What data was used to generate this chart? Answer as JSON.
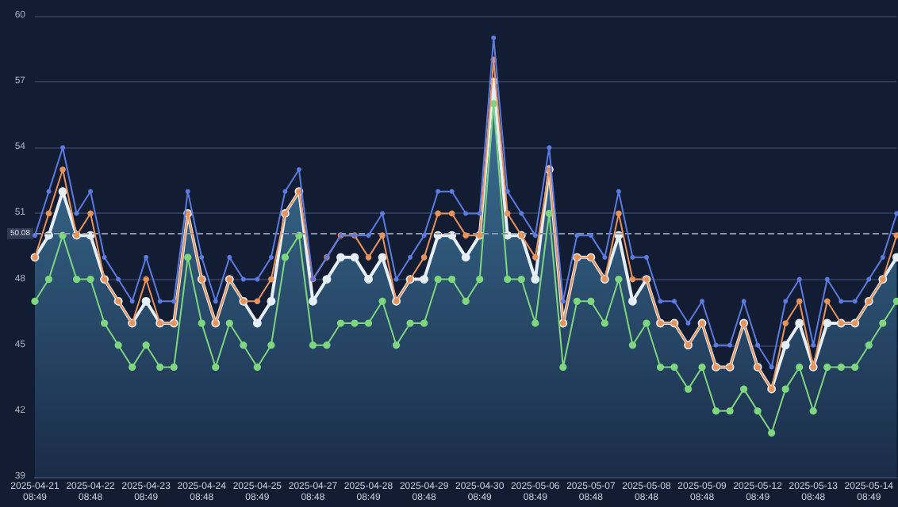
{
  "chart_data": {
    "type": "line",
    "categories": [
      "2025-04-21\n08:49",
      null,
      null,
      null,
      "2025-04-22\n08:48",
      null,
      null,
      null,
      "2025-04-23\n08:49",
      null,
      null,
      null,
      "2025-04-24\n08:48",
      null,
      null,
      null,
      "2025-04-25\n08:49",
      null,
      null,
      null,
      "2025-04-27\n08:48",
      null,
      null,
      null,
      "2025-04-28\n08:49",
      null,
      null,
      null,
      "2025-04-29\n08:48",
      null,
      null,
      null,
      "2025-04-30\n08:49",
      null,
      null,
      null,
      "2025-05-06\n08:49",
      null,
      null,
      null,
      "2025-05-07\n08:48",
      null,
      null,
      null,
      "2025-05-08\n08:48",
      null,
      null,
      null,
      "2025-05-09\n08:48",
      null,
      null,
      null,
      "2025-05-12\n08:49",
      null,
      null,
      null,
      "2025-05-13\n08:48",
      null,
      null,
      null,
      "2025-05-14\n08:49",
      null,
      null
    ],
    "series": [
      {
        "type": "area",
        "color": "#e6eef5",
        "values": [
          49,
          50,
          52,
          50,
          50,
          48,
          47,
          46,
          47,
          46,
          46,
          51,
          48,
          46,
          48,
          47,
          46,
          47,
          51,
          52,
          47,
          48,
          49,
          49,
          48,
          49,
          47,
          48,
          48,
          50,
          50,
          49,
          50,
          57,
          50,
          50,
          48,
          53,
          46,
          49,
          49,
          48,
          50,
          47,
          48,
          46,
          46,
          45,
          46,
          44,
          44,
          46,
          44,
          43,
          45,
          46,
          44,
          46,
          46,
          46,
          47,
          48,
          49
        ]
      },
      {
        "color": "#7ed67e",
        "values": [
          47,
          48,
          50,
          48,
          48,
          46,
          45,
          44,
          45,
          44,
          44,
          49,
          46,
          44,
          46,
          45,
          44,
          45,
          49,
          50,
          45,
          45,
          46,
          46,
          46,
          47,
          45,
          46,
          46,
          48,
          48,
          47,
          48,
          56,
          48,
          48,
          46,
          51,
          44,
          47,
          47,
          46,
          48,
          45,
          46,
          44,
          44,
          43,
          44,
          42,
          42,
          43,
          42,
          41,
          43,
          44,
          42,
          44,
          44,
          44,
          45,
          46,
          47
        ]
      },
      {
        "color": "#e8935a",
        "values": [
          49,
          51,
          53,
          50,
          51,
          48,
          47,
          46,
          48,
          46,
          46,
          51,
          48,
          46,
          48,
          47,
          47,
          48,
          51,
          52,
          48,
          49,
          50,
          50,
          49,
          50,
          47,
          48,
          49,
          51,
          51,
          50,
          50,
          58,
          51,
          50,
          49,
          53,
          46,
          49,
          49,
          48,
          51,
          48,
          48,
          46,
          46,
          45,
          46,
          44,
          44,
          46,
          44,
          43,
          46,
          47,
          44,
          47,
          46,
          46,
          47,
          48,
          50
        ]
      },
      {
        "color": "#5b7be0",
        "values": [
          50,
          52,
          54,
          51,
          52,
          49,
          48,
          47,
          49,
          47,
          47,
          52,
          49,
          47,
          49,
          48,
          48,
          49,
          52,
          53,
          48,
          49,
          50,
          50,
          50,
          51,
          48,
          49,
          50,
          52,
          52,
          51,
          51,
          59,
          52,
          51,
          50,
          54,
          47,
          50,
          50,
          49,
          52,
          49,
          49,
          47,
          47,
          46,
          47,
          45,
          45,
          47,
          45,
          44,
          47,
          48,
          45,
          48,
          47,
          47,
          48,
          49,
          51
        ]
      }
    ],
    "ylim": [
      39,
      60
    ],
    "yticks": [
      39,
      42,
      45,
      48,
      51,
      54,
      57,
      60
    ],
    "grid": "y",
    "marker": "circle",
    "line_style": "solid",
    "ref_lines": [
      {
        "axis": "y",
        "value": 50.08,
        "label": "50.08",
        "color": "#8a94a8",
        "line_style": "dashed"
      }
    ]
  }
}
